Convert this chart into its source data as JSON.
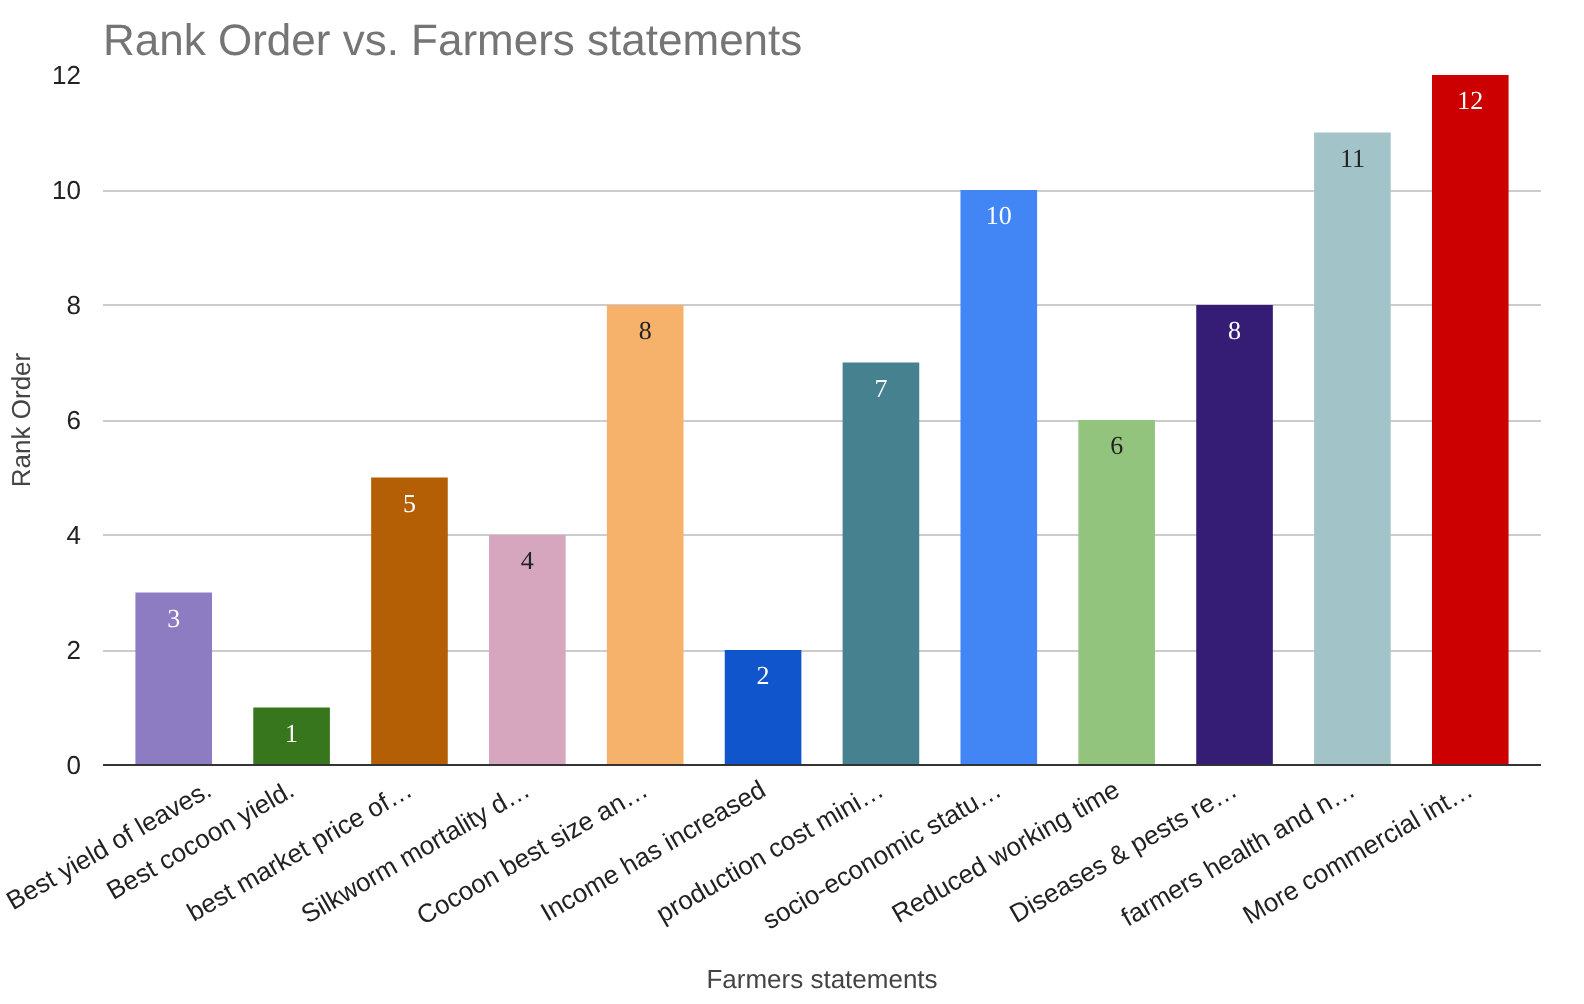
{
  "chart_data": {
    "type": "bar",
    "title": "Rank Order vs. Farmers statements",
    "xlabel": "Farmers statements",
    "ylabel": "Rank Order",
    "categories": [
      "Best yield of leaves.",
      "Best cocoon yield.",
      "best market price of…",
      "Silkworm mortality d…",
      "Cocoon best size an…",
      "Income has increased",
      "production cost mini…",
      "socio-economic statu…",
      "Reduced working time",
      "Diseases & pests re…",
      "farmers health and n…",
      "More commercial int…"
    ],
    "values": [
      3,
      1,
      5,
      4,
      8,
      2,
      7,
      10,
      6,
      8,
      11,
      12
    ],
    "colors": [
      "#8e7cc3",
      "#38761d",
      "#b45f06",
      "#d5a6bd",
      "#f6b26b",
      "#1155cc",
      "#45818e",
      "#4285f4",
      "#93c47d",
      "#351c75",
      "#a2c4c9",
      "#cc0000"
    ],
    "ylim": [
      0,
      12
    ],
    "yticks": [
      0,
      2,
      4,
      6,
      8,
      10,
      12
    ],
    "grid": "y",
    "data_labels": true
  }
}
